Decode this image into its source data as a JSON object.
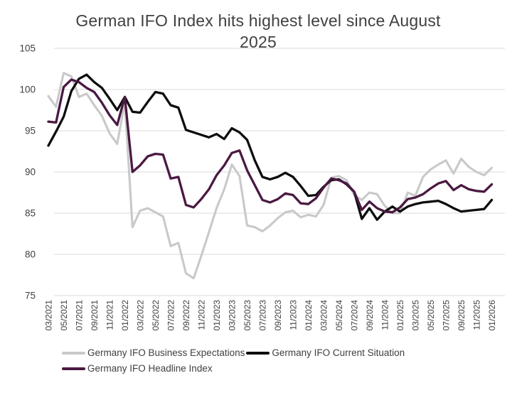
{
  "title_lines": [
    "German IFO Index hits highest level since August",
    "2025"
  ],
  "colors": {
    "grid": "#d9d9d9",
    "axis_text": "#404040",
    "title_text": "#404040",
    "background": "#ffffff"
  },
  "chart_data": {
    "type": "line",
    "title": "German IFO Index hits highest level since August 2025",
    "xlabel": "",
    "ylabel": "",
    "ylim": [
      75,
      105
    ],
    "yticks": [
      105,
      100,
      95,
      90,
      85,
      80,
      75
    ],
    "grid": "horizontal gridlines on",
    "legend_position": "bottom",
    "categories": [
      "03/2021",
      "04/2021",
      "05/2021",
      "06/2021",
      "07/2021",
      "08/2021",
      "09/2021",
      "10/2021",
      "11/2021",
      "12/2021",
      "01/2022",
      "02/2022",
      "03/2022",
      "04/2022",
      "05/2022",
      "06/2022",
      "07/2022",
      "08/2022",
      "09/2022",
      "10/2022",
      "11/2022",
      "12/2022",
      "01/2023",
      "02/2023",
      "03/2023",
      "04/2023",
      "05/2023",
      "06/2023",
      "07/2023",
      "08/2023",
      "09/2023",
      "10/2023",
      "11/2023",
      "12/2023",
      "01/2024",
      "02/2024",
      "03/2024",
      "04/2024",
      "05/2024",
      "06/2024",
      "07/2024",
      "08/2024",
      "09/2024",
      "10/2024",
      "11/2024",
      "12/2024",
      "01/2025",
      "02/2025",
      "03/2025",
      "04/2025",
      "05/2025",
      "06/2025",
      "07/2025",
      "08/2025",
      "09/2025",
      "10/2025",
      "11/2025",
      "12/2025",
      "01/2026"
    ],
    "xticklabels_shown": [
      "03/2021",
      "05/2021",
      "07/2021",
      "09/2021",
      "11/2021",
      "01/2022",
      "03/2022",
      "05/2022",
      "07/2022",
      "09/2022",
      "11/2022",
      "01/2023",
      "03/2023",
      "05/2023",
      "07/2023",
      "09/2023",
      "11/2023",
      "01/2024",
      "03/2024",
      "05/2024",
      "07/2024",
      "09/2024",
      "11/2024",
      "01/2025",
      "03/2025",
      "05/2025",
      "07/2025",
      "09/2025",
      "11/2025",
      "01/2026"
    ],
    "series": [
      {
        "name": "Germany IFO Business Expectations",
        "color": "#c9c9c9",
        "stroke_width": 3.1,
        "values": [
          99.2,
          97.9,
          102.0,
          101.6,
          99.1,
          99.5,
          98.1,
          96.8,
          94.7,
          93.4,
          98.5,
          83.3,
          85.3,
          85.6,
          85.1,
          84.6,
          81.0,
          81.4,
          77.7,
          77.1,
          79.8,
          82.7,
          85.6,
          87.9,
          90.9,
          89.5,
          83.5,
          83.3,
          82.8,
          83.5,
          84.4,
          85.1,
          85.3,
          84.5,
          84.8,
          84.6,
          86.0,
          89.3,
          89.5,
          89.0,
          87.2,
          86.6,
          87.5,
          87.3,
          85.9,
          85.0,
          85.0,
          87.5,
          87.1,
          89.4,
          90.3,
          90.9,
          91.4,
          89.8,
          91.6,
          90.6,
          90.0,
          89.6,
          90.5
        ]
      },
      {
        "name": "Germany IFO Current Situation",
        "color": "#0d0d0d",
        "stroke_width": 3.3,
        "values": [
          93.2,
          94.9,
          96.7,
          99.8,
          101.3,
          101.8,
          100.9,
          100.2,
          98.9,
          97.5,
          99.1,
          97.3,
          97.2,
          98.5,
          99.7,
          99.5,
          98.1,
          97.8,
          95.1,
          94.8,
          94.5,
          94.2,
          94.6,
          94.0,
          95.3,
          94.8,
          93.9,
          91.4,
          89.4,
          89.1,
          89.4,
          89.9,
          89.4,
          88.3,
          87.1,
          87.2,
          88.2,
          89.0,
          89.1,
          88.5,
          87.6,
          84.3,
          85.6,
          84.2,
          85.2,
          85.8,
          85.2,
          85.8,
          86.1,
          86.3,
          86.4,
          86.5,
          86.1,
          85.6,
          85.2,
          85.3,
          85.4,
          85.5,
          86.6
        ]
      },
      {
        "name": "Germany IFO Headline Index",
        "color": "#4a1942",
        "stroke_width": 3.3,
        "values": [
          96.1,
          96.0,
          100.3,
          101.2,
          100.9,
          100.2,
          99.7,
          98.4,
          96.9,
          95.7,
          99.1,
          90.0,
          90.8,
          91.9,
          92.2,
          92.1,
          89.2,
          89.4,
          86.0,
          85.7,
          86.7,
          87.9,
          89.6,
          90.8,
          92.3,
          92.6,
          90.2,
          88.4,
          86.6,
          86.3,
          86.7,
          87.4,
          87.2,
          86.2,
          86.1,
          86.8,
          88.1,
          89.2,
          89.0,
          88.6,
          87.6,
          85.4,
          86.4,
          85.6,
          85.2,
          85.1,
          85.7,
          86.7,
          86.9,
          87.3,
          88.0,
          88.6,
          88.9,
          87.8,
          88.4,
          87.9,
          87.7,
          87.6,
          88.5
        ]
      }
    ]
  },
  "legend": {
    "rows": [
      [
        "Germany IFO Business Expectations",
        "Germany IFO Current Situation"
      ],
      [
        "Germany IFO Headline Index"
      ]
    ]
  }
}
